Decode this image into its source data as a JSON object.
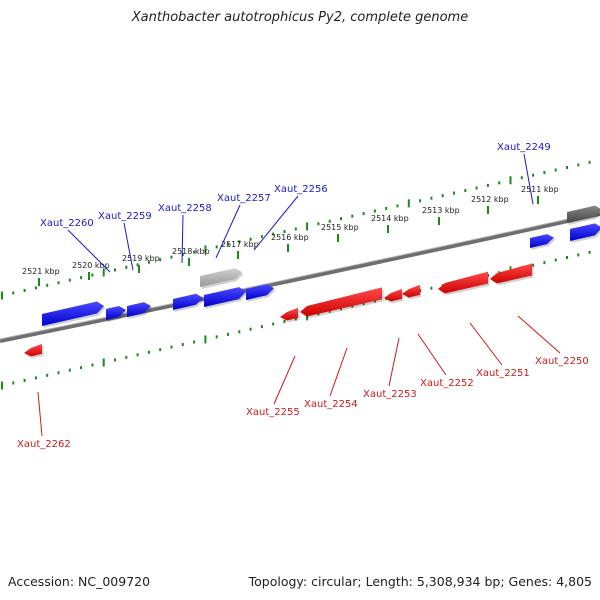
{
  "title": "Xanthobacter autotrophicus Py2, complete genome",
  "footer": {
    "accession": "Accession: NC_009720",
    "summary": "Topology: circular; Length: 5,308,934 bp; Genes: 4,805"
  },
  "colors": {
    "forward": "#1111ee",
    "reverse": "#ee1111",
    "tick": "#1a8a1a",
    "backbone": "#777777",
    "label_forward": "#1a1acc",
    "label_reverse": "#cc1a1a",
    "other_gene": "#b8b8b8"
  },
  "ticks": [
    {
      "label": "2521 kbp"
    },
    {
      "label": "2520 kbp"
    },
    {
      "label": "2519 kbp"
    },
    {
      "label": "2518 kbp"
    },
    {
      "label": "2517 kbp"
    },
    {
      "label": "2516 kbp"
    },
    {
      "label": "2515 kbp"
    },
    {
      "label": "2514 kbp"
    },
    {
      "label": "2513 kbp"
    },
    {
      "label": "2512 kbp"
    },
    {
      "label": "2511 kbp"
    }
  ],
  "genes_forward": [
    {
      "label": "Xaut_2260"
    },
    {
      "label": "Xaut_2259"
    },
    {
      "label": "Xaut_2258"
    },
    {
      "label": "Xaut_2257"
    },
    {
      "label": "Xaut_2256"
    },
    {
      "label": "Xaut_2249"
    }
  ],
  "genes_reverse": [
    {
      "label": "Xaut_2262"
    },
    {
      "label": "Xaut_2255"
    },
    {
      "label": "Xaut_2254"
    },
    {
      "label": "Xaut_2253"
    },
    {
      "label": "Xaut_2252"
    },
    {
      "label": "Xaut_2251"
    },
    {
      "label": "Xaut_2250"
    }
  ]
}
